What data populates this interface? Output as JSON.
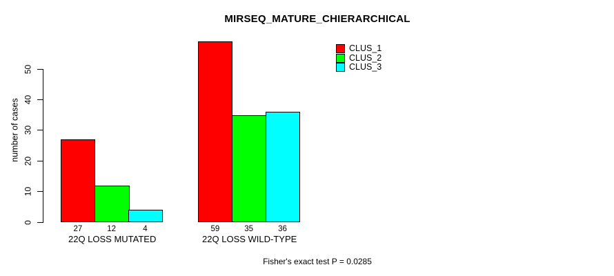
{
  "chart_data": {
    "type": "bar",
    "title": "MIRSEQ_MATURE_CHIERARCHICAL",
    "ylabel": "number of cases",
    "xlabel": "",
    "categories": [
      "22Q LOSS MUTATED",
      "22Q LOSS WILD-TYPE"
    ],
    "series": [
      {
        "name": "CLUS_1",
        "color": "#ff0000",
        "values": [
          27,
          59
        ]
      },
      {
        "name": "CLUS_2",
        "color": "#00ff00",
        "values": [
          12,
          35
        ]
      },
      {
        "name": "CLUS_3",
        "color": "#00ffff",
        "values": [
          4,
          36
        ]
      }
    ],
    "show_bar_values": true,
    "yticks": [
      0,
      10,
      20,
      30,
      40,
      50
    ],
    "ylim": [
      0,
      50
    ],
    "grid": false,
    "legend_position": "top-right",
    "bar_border_color": "#000000",
    "footnote": "Fisher's exact test P = 0.0285"
  }
}
